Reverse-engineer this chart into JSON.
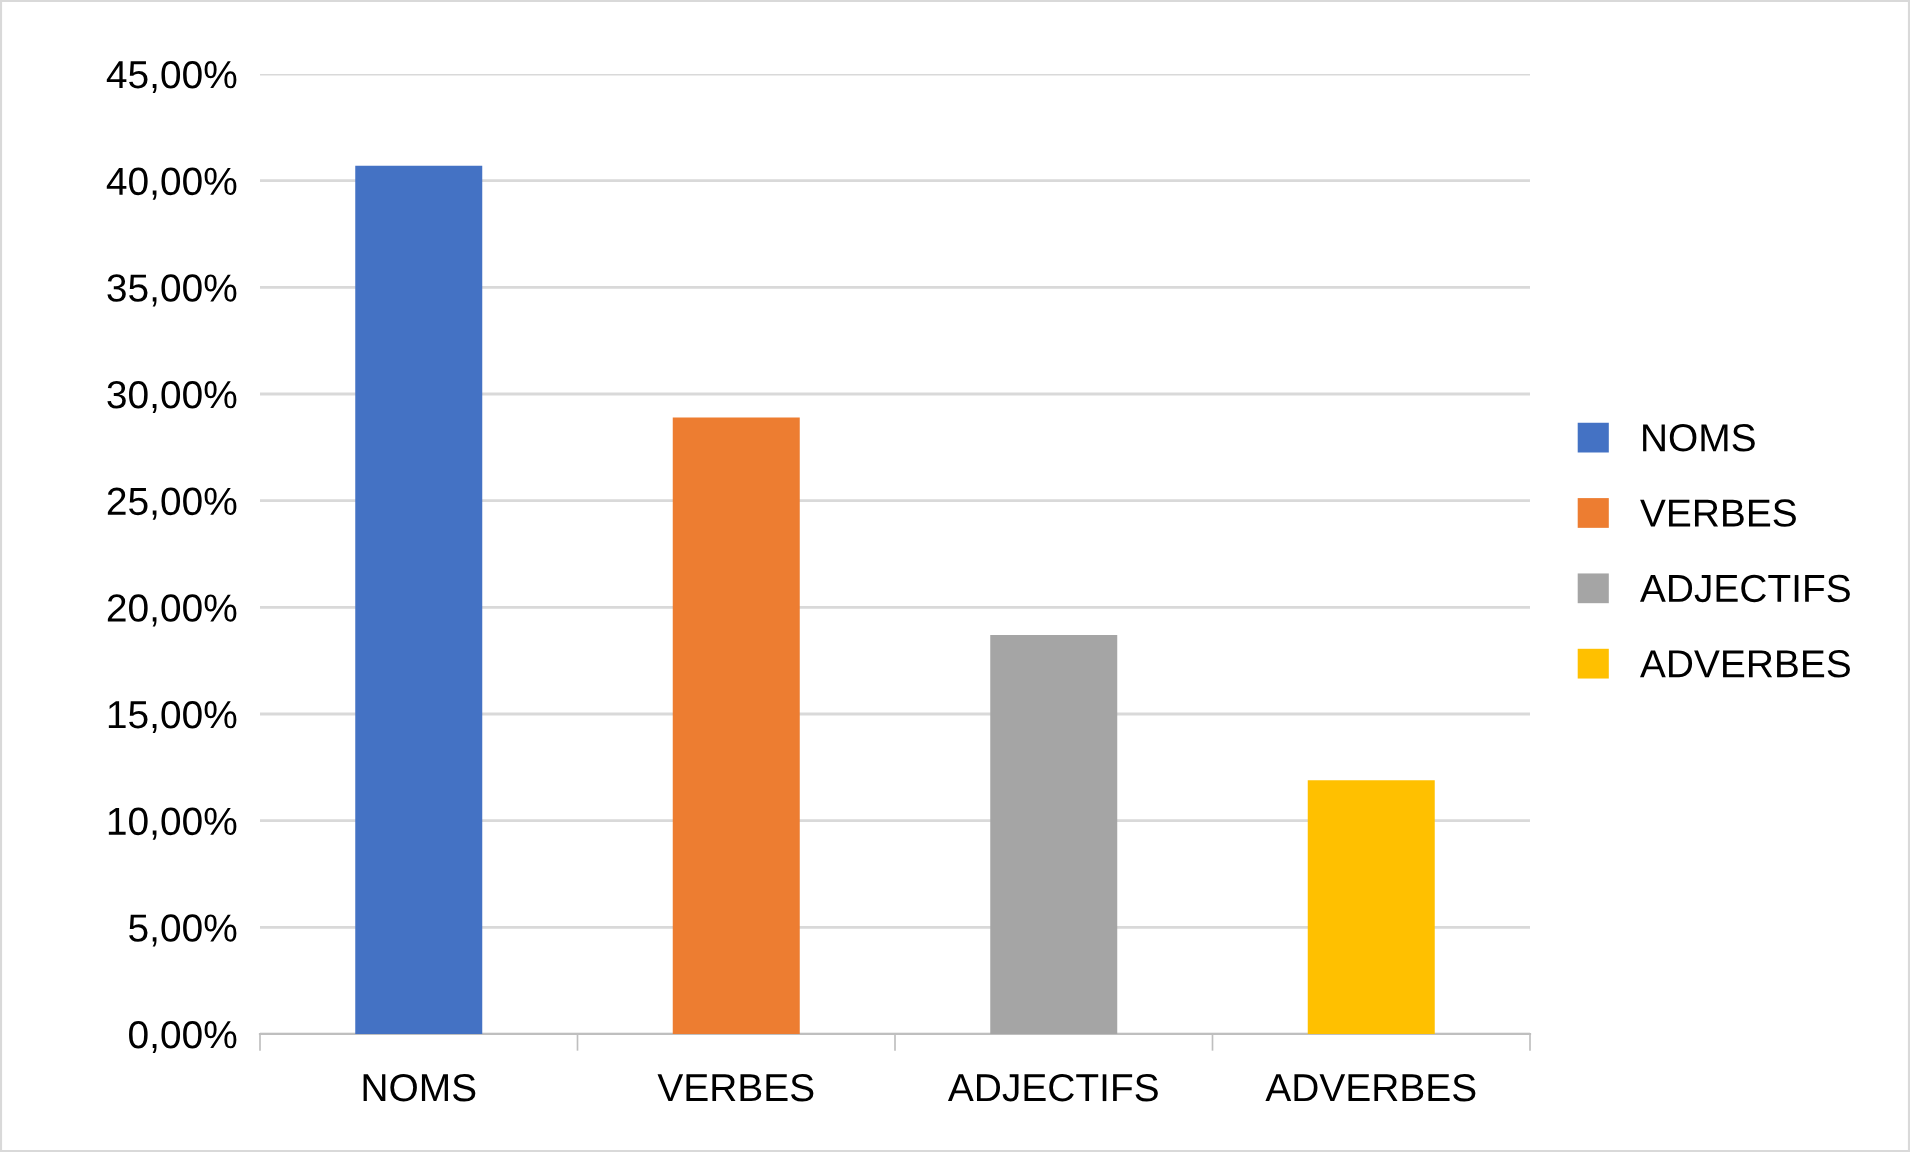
{
  "chart_data": {
    "type": "bar",
    "categories": [
      "NOMS",
      "VERBES",
      "ADJECTIFS",
      "ADVERBES"
    ],
    "series": [
      {
        "name": "NOMS",
        "color": "#4472c4",
        "values": [
          40.7,
          null,
          null,
          null
        ]
      },
      {
        "name": "VERBES",
        "color": "#ed7d31",
        "values": [
          null,
          28.9,
          null,
          null
        ]
      },
      {
        "name": "ADJECTIFS",
        "color": "#a5a5a5",
        "values": [
          null,
          null,
          18.7,
          null
        ]
      },
      {
        "name": "ADVERBES",
        "color": "#ffc000",
        "values": [
          null,
          null,
          null,
          11.9
        ]
      }
    ],
    "ylim": [
      0,
      45
    ],
    "yticks": [
      {
        "value": 0,
        "label": "0,00%"
      },
      {
        "value": 5,
        "label": "5,00%"
      },
      {
        "value": 10,
        "label": "10,00%"
      },
      {
        "value": 15,
        "label": "15,00%"
      },
      {
        "value": 20,
        "label": "20,00%"
      },
      {
        "value": 25,
        "label": "25,00%"
      },
      {
        "value": 30,
        "label": "30,00%"
      },
      {
        "value": 35,
        "label": "35,00%"
      },
      {
        "value": 40,
        "label": "40,00%"
      },
      {
        "value": 45,
        "label": "45,00%"
      }
    ],
    "grid": "y",
    "legend": "right"
  }
}
